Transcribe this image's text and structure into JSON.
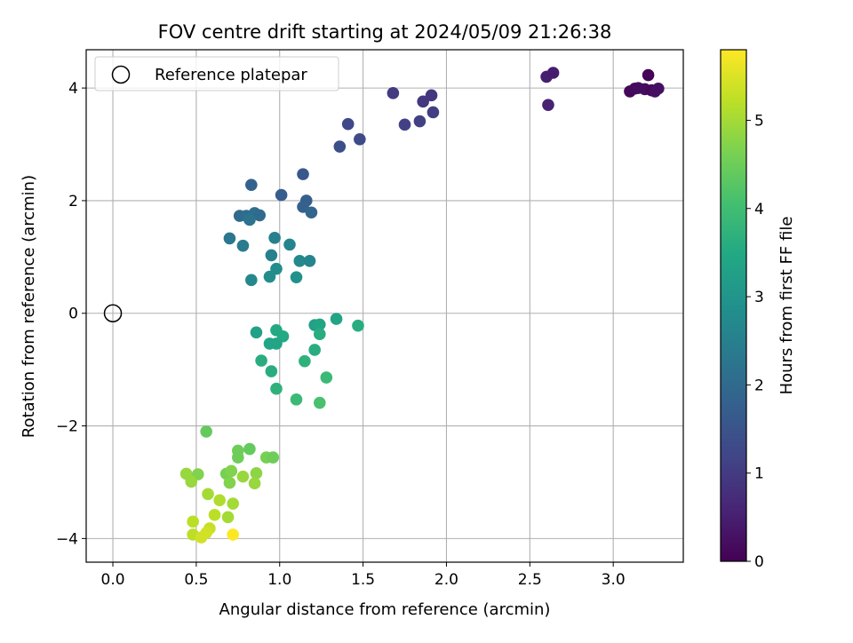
{
  "chart_data": {
    "type": "scatter",
    "title": "FOV centre drift starting at 2024/05/09 21:26:38",
    "xlabel": "Angular distance from reference (arcmin)",
    "ylabel": "Rotation from reference (arcmin)",
    "xlim": [
      -0.16,
      3.42
    ],
    "ylim": [
      -4.42,
      4.68
    ],
    "xticks": [
      0.0,
      0.5,
      1.0,
      1.5,
      2.0,
      2.5,
      3.0
    ],
    "xtick_labels": [
      "0.0",
      "0.5",
      "1.0",
      "1.5",
      "2.0",
      "2.5",
      "3.0"
    ],
    "yticks": [
      -4,
      -2,
      0,
      2,
      4
    ],
    "ytick_labels": [
      "−4",
      "−2",
      "0",
      "2",
      "4"
    ],
    "grid": true,
    "legend": {
      "placement": "top-left",
      "entries": [
        "Reference platepar"
      ]
    },
    "colorbar": {
      "label": "Hours from first FF file",
      "colormap": "viridis",
      "range": [
        0,
        5.8
      ],
      "ticks": [
        0,
        1,
        2,
        3,
        4,
        5
      ],
      "tick_labels": [
        "0",
        "1",
        "2",
        "3",
        "4",
        "5"
      ]
    },
    "reference": {
      "name": "Reference platepar",
      "x": 0.0,
      "y": 0.0
    },
    "series": [
      {
        "points": [
          {
            "x": 3.1,
            "y": 3.94,
            "c": 0.1
          },
          {
            "x": 3.13,
            "y": 3.99,
            "c": 0.15
          },
          {
            "x": 3.15,
            "y": 4.0,
            "c": 0.18
          },
          {
            "x": 3.19,
            "y": 3.98,
            "c": 0.2
          },
          {
            "x": 3.21,
            "y": 4.23,
            "c": 0.05
          },
          {
            "x": 3.23,
            "y": 3.96,
            "c": 0.12
          },
          {
            "x": 3.25,
            "y": 3.94,
            "c": 0.22
          },
          {
            "x": 3.27,
            "y": 3.99,
            "c": 0.25
          },
          {
            "x": 2.6,
            "y": 4.2,
            "c": 0.5
          },
          {
            "x": 2.64,
            "y": 4.27,
            "c": 0.45
          },
          {
            "x": 2.61,
            "y": 3.7,
            "c": 0.55
          },
          {
            "x": 1.68,
            "y": 3.91,
            "c": 1.0
          },
          {
            "x": 1.86,
            "y": 3.76,
            "c": 0.95
          },
          {
            "x": 1.91,
            "y": 3.87,
            "c": 0.9
          },
          {
            "x": 1.92,
            "y": 3.57,
            "c": 1.05
          },
          {
            "x": 1.75,
            "y": 3.35,
            "c": 1.1
          },
          {
            "x": 1.84,
            "y": 3.41,
            "c": 1.1
          },
          {
            "x": 1.41,
            "y": 3.36,
            "c": 1.25
          },
          {
            "x": 1.48,
            "y": 3.09,
            "c": 1.3
          },
          {
            "x": 1.36,
            "y": 2.96,
            "c": 1.4
          },
          {
            "x": 1.14,
            "y": 2.47,
            "c": 1.6
          },
          {
            "x": 0.83,
            "y": 2.28,
            "c": 1.8
          },
          {
            "x": 1.01,
            "y": 2.1,
            "c": 1.7
          },
          {
            "x": 1.16,
            "y": 2.0,
            "c": 1.75
          },
          {
            "x": 1.14,
            "y": 1.89,
            "c": 1.8
          },
          {
            "x": 1.19,
            "y": 1.79,
            "c": 1.9
          },
          {
            "x": 0.76,
            "y": 1.73,
            "c": 2.0
          },
          {
            "x": 0.8,
            "y": 1.73,
            "c": 2.05
          },
          {
            "x": 0.85,
            "y": 1.78,
            "c": 2.1
          },
          {
            "x": 0.88,
            "y": 1.74,
            "c": 2.0
          },
          {
            "x": 0.82,
            "y": 1.66,
            "c": 2.2
          },
          {
            "x": 0.7,
            "y": 1.33,
            "c": 2.3
          },
          {
            "x": 0.78,
            "y": 1.2,
            "c": 2.4
          },
          {
            "x": 0.97,
            "y": 1.34,
            "c": 2.5
          },
          {
            "x": 1.06,
            "y": 1.22,
            "c": 2.6
          },
          {
            "x": 0.95,
            "y": 1.03,
            "c": 2.5
          },
          {
            "x": 1.12,
            "y": 0.93,
            "c": 2.7
          },
          {
            "x": 1.18,
            "y": 0.93,
            "c": 2.6
          },
          {
            "x": 0.98,
            "y": 0.79,
            "c": 2.8
          },
          {
            "x": 0.94,
            "y": 0.65,
            "c": 2.8
          },
          {
            "x": 1.1,
            "y": 0.64,
            "c": 2.9
          },
          {
            "x": 0.83,
            "y": 0.59,
            "c": 2.7
          },
          {
            "x": 1.34,
            "y": -0.1,
            "c": 3.4
          },
          {
            "x": 1.21,
            "y": -0.21,
            "c": 3.3
          },
          {
            "x": 1.24,
            "y": -0.2,
            "c": 3.4
          },
          {
            "x": 1.47,
            "y": -0.22,
            "c": 3.6
          },
          {
            "x": 0.86,
            "y": -0.34,
            "c": 3.3
          },
          {
            "x": 0.98,
            "y": -0.3,
            "c": 3.5
          },
          {
            "x": 1.02,
            "y": -0.41,
            "c": 3.5
          },
          {
            "x": 1.24,
            "y": -0.37,
            "c": 3.6
          },
          {
            "x": 0.94,
            "y": -0.54,
            "c": 3.4
          },
          {
            "x": 0.98,
            "y": -0.54,
            "c": 3.4
          },
          {
            "x": 1.21,
            "y": -0.65,
            "c": 3.6
          },
          {
            "x": 0.89,
            "y": -0.84,
            "c": 3.6
          },
          {
            "x": 1.15,
            "y": -0.85,
            "c": 3.7
          },
          {
            "x": 0.95,
            "y": -1.03,
            "c": 3.6
          },
          {
            "x": 1.28,
            "y": -1.14,
            "c": 3.9
          },
          {
            "x": 0.98,
            "y": -1.34,
            "c": 3.7
          },
          {
            "x": 1.1,
            "y": -1.53,
            "c": 3.9
          },
          {
            "x": 1.24,
            "y": -1.59,
            "c": 4.1
          },
          {
            "x": 0.56,
            "y": -2.1,
            "c": 4.4
          },
          {
            "x": 0.75,
            "y": -2.44,
            "c": 4.5
          },
          {
            "x": 0.82,
            "y": -2.41,
            "c": 4.4
          },
          {
            "x": 0.75,
            "y": -2.56,
            "c": 4.5
          },
          {
            "x": 0.92,
            "y": -2.56,
            "c": 4.6
          },
          {
            "x": 0.96,
            "y": -2.56,
            "c": 4.5
          },
          {
            "x": 0.44,
            "y": -2.85,
            "c": 4.9
          },
          {
            "x": 0.51,
            "y": -2.86,
            "c": 4.7
          },
          {
            "x": 0.68,
            "y": -2.85,
            "c": 4.6
          },
          {
            "x": 0.71,
            "y": -2.8,
            "c": 4.7
          },
          {
            "x": 0.86,
            "y": -2.84,
            "c": 4.8
          },
          {
            "x": 0.47,
            "y": -2.99,
            "c": 4.9
          },
          {
            "x": 0.7,
            "y": -3.01,
            "c": 4.7
          },
          {
            "x": 0.78,
            "y": -2.9,
            "c": 4.9
          },
          {
            "x": 0.85,
            "y": -3.02,
            "c": 4.9
          },
          {
            "x": 0.57,
            "y": -3.21,
            "c": 5.0
          },
          {
            "x": 0.64,
            "y": -3.32,
            "c": 5.1
          },
          {
            "x": 0.72,
            "y": -3.38,
            "c": 5.0
          },
          {
            "x": 0.61,
            "y": -3.58,
            "c": 5.2
          },
          {
            "x": 0.69,
            "y": -3.62,
            "c": 5.0
          },
          {
            "x": 0.48,
            "y": -3.7,
            "c": 5.2
          },
          {
            "x": 0.58,
            "y": -3.82,
            "c": 5.3
          },
          {
            "x": 0.56,
            "y": -3.9,
            "c": 5.4
          },
          {
            "x": 0.48,
            "y": -3.93,
            "c": 5.2
          },
          {
            "x": 0.53,
            "y": -3.98,
            "c": 5.4
          },
          {
            "x": 0.72,
            "y": -3.93,
            "c": 5.8
          }
        ]
      }
    ]
  }
}
